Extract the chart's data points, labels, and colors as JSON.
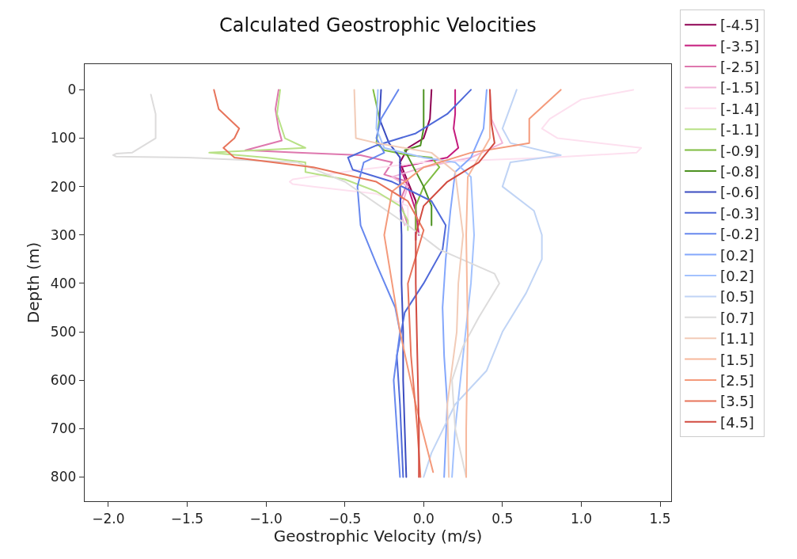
{
  "chart_data": {
    "type": "line",
    "title": "Calculated Geostrophic Velocities",
    "xlabel": "Geostrophic Velocity (m/s)",
    "ylabel": "Depth (m)",
    "xlim": [
      -2.15,
      1.57
    ],
    "ylim": [
      850,
      -53
    ],
    "xticks": [
      {
        "value": -2,
        "label": "−2.0"
      },
      {
        "value": -1.5,
        "label": "−1.5"
      },
      {
        "value": -1,
        "label": "−1.0"
      },
      {
        "value": -0.5,
        "label": "−0.5"
      },
      {
        "value": 0,
        "label": "0.0"
      },
      {
        "value": 0.5,
        "label": "0.5"
      },
      {
        "value": 1,
        "label": "1.0"
      },
      {
        "value": 1.5,
        "label": "1.5"
      }
    ],
    "yticks": [
      0,
      100,
      200,
      300,
      400,
      500,
      600,
      700,
      800
    ],
    "grid": false,
    "legend": "right",
    "series": [
      {
        "name": "[-4.5]",
        "color": "#8e0152",
        "x": [
          0.05,
          0.04,
          0.0,
          -0.1,
          -0.15,
          -0.1,
          -0.05,
          -0.05,
          -0.05
        ],
        "values": [
          0,
          60,
          100,
          120,
          150,
          190,
          230,
          270,
          310
        ]
      },
      {
        "name": "[-3.5]",
        "color": "#c51b7d",
        "x": [
          0.2,
          0.2,
          0.19,
          0.22,
          0.15,
          0.0,
          -0.15,
          -0.1,
          -0.05,
          -0.03
        ],
        "values": [
          0,
          50,
          80,
          120,
          140,
          150,
          160,
          200,
          250,
          300
        ]
      },
      {
        "name": "[-2.5]",
        "color": "#de77ae",
        "x": [
          -0.92,
          -0.94,
          -0.92,
          -0.9,
          -1.13,
          -0.8,
          -0.4,
          -0.2,
          -0.25,
          -0.1,
          -0.15,
          -0.1
        ],
        "values": [
          0,
          40,
          80,
          105,
          125,
          130,
          135,
          150,
          175,
          190,
          230,
          280
        ]
      },
      {
        "name": "[-1.5]",
        "color": "#f1b6da",
        "x": [
          0.42,
          0.43,
          0.5,
          0.3,
          0.0,
          -0.2,
          -0.1,
          -0.15,
          -0.12
        ],
        "values": [
          0,
          60,
          110,
          140,
          160,
          180,
          200,
          250,
          280
        ]
      },
      {
        "name": "[-1.4]",
        "color": "#fde0ef",
        "x": [
          1.33,
          1.0,
          0.8,
          0.75,
          0.85,
          1.38,
          1.35,
          0.8,
          0.0,
          -0.4,
          -0.83,
          -0.85,
          -0.83,
          -0.7,
          -0.3,
          -0.1,
          -0.1
        ],
        "values": [
          0,
          20,
          60,
          80,
          100,
          120,
          130,
          140,
          150,
          165,
          185,
          190,
          195,
          200,
          215,
          240,
          280
        ]
      },
      {
        "name": "[-1.1]",
        "color": "#b8e186",
        "x": [
          -0.91,
          -0.93,
          -0.88,
          -0.75,
          -1.36,
          -1.0,
          -0.75,
          -0.75,
          -0.5,
          -0.3,
          -0.15,
          -0.1,
          -0.1
        ],
        "values": [
          0,
          50,
          100,
          120,
          130,
          140,
          150,
          170,
          185,
          210,
          240,
          270,
          290
        ]
      },
      {
        "name": "[-0.9]",
        "color": "#7fbc41",
        "x": [
          -0.32,
          -0.28,
          -0.3,
          -0.25,
          -0.1,
          0.05,
          0.1,
          0.0,
          -0.05,
          -0.05
        ],
        "values": [
          0,
          60,
          110,
          125,
          135,
          140,
          160,
          200,
          240,
          290
        ]
      },
      {
        "name": "[-0.8]",
        "color": "#4d9221",
        "x": [
          0.0,
          0.0,
          -0.02,
          -0.12,
          -0.08,
          0.0,
          0.05,
          0.05
        ],
        "values": [
          0,
          80,
          115,
          125,
          150,
          200,
          240,
          280
        ]
      },
      {
        "name": "[-0.6]",
        "color": "#3b4cc0",
        "x": [
          -0.27,
          -0.28,
          -0.22,
          -0.15,
          -0.15,
          -0.14,
          -0.14,
          -0.13,
          -0.13,
          -0.12,
          -0.11
        ],
        "values": [
          0,
          60,
          110,
          140,
          200,
          300,
          400,
          500,
          600,
          700,
          800
        ]
      },
      {
        "name": "[-0.3]",
        "color": "#4f69d9",
        "x": [
          0.3,
          0.15,
          -0.05,
          -0.3,
          -0.48,
          -0.45,
          -0.2,
          0.05,
          0.14,
          0.12,
          0.0,
          -0.12,
          -0.17,
          -0.15,
          -0.13
        ],
        "values": [
          0,
          50,
          90,
          115,
          140,
          165,
          190,
          230,
          280,
          330,
          400,
          460,
          550,
          650,
          800
        ]
      },
      {
        "name": "[-0.2]",
        "color": "#6788ee",
        "x": [
          -0.16,
          -0.27,
          -0.3,
          -0.25,
          -0.38,
          -0.42,
          -0.4,
          -0.3,
          -0.18,
          -0.15,
          -0.19,
          -0.17,
          -0.15
        ],
        "values": [
          0,
          60,
          100,
          130,
          150,
          200,
          280,
          360,
          450,
          500,
          600,
          700,
          800
        ]
      },
      {
        "name": "[0.2]",
        "color": "#84a7fc",
        "x": [
          0.4,
          0.38,
          0.3,
          0.2,
          0.17,
          0.14,
          0.12,
          0.13,
          0.15,
          0.13
        ],
        "values": [
          0,
          80,
          140,
          170,
          250,
          350,
          450,
          550,
          650,
          800
        ]
      },
      {
        "name": "[0.2]",
        "color": "#a3c2fe",
        "x": [
          -0.29,
          -0.3,
          -0.25,
          0.0,
          0.2,
          0.3,
          0.32,
          0.3,
          0.25,
          0.2,
          0.18
        ],
        "values": [
          0,
          80,
          120,
          140,
          150,
          180,
          300,
          400,
          550,
          700,
          800
        ]
      },
      {
        "name": "[0.5]",
        "color": "#c0d4f5",
        "x": [
          0.59,
          0.5,
          0.55,
          0.87,
          0.55,
          0.5,
          0.7,
          0.75,
          0.75,
          0.65,
          0.5,
          0.4,
          0.2,
          0.05,
          0.0
        ],
        "values": [
          0,
          80,
          110,
          135,
          150,
          200,
          250,
          300,
          350,
          420,
          500,
          580,
          650,
          750,
          800
        ]
      },
      {
        "name": "[0.7]",
        "color": "#dddcdc",
        "x": [
          -1.73,
          -1.7,
          -1.7,
          -1.85,
          -1.95,
          -1.97,
          -1.95,
          -1.5,
          -0.8,
          -0.5,
          -0.1,
          0.1,
          0.45,
          0.48,
          0.35,
          0.25,
          0.18,
          0.2,
          0.27
        ],
        "values": [
          10,
          50,
          100,
          130,
          132,
          135,
          138,
          140,
          150,
          190,
          280,
          330,
          380,
          400,
          470,
          530,
          600,
          700,
          800
        ]
      },
      {
        "name": "[1.1]",
        "color": "#f2cbb7",
        "x": [
          -0.44,
          -0.43,
          -0.3,
          0.05,
          0.2,
          0.25,
          0.22,
          0.21,
          0.15,
          0.16
        ],
        "values": [
          0,
          100,
          110,
          130,
          170,
          300,
          400,
          500,
          650,
          800
        ]
      },
      {
        "name": "[1.5]",
        "color": "#f7b89c",
        "x": [
          0.42,
          0.42,
          0.35,
          0.28,
          0.27,
          0.28,
          0.27,
          0.27
        ],
        "values": [
          0,
          100,
          140,
          180,
          300,
          500,
          700,
          800
        ]
      },
      {
        "name": "[2.5]",
        "color": "#f49a7b",
        "x": [
          0.87,
          0.67,
          0.67,
          0.3,
          0.0,
          -0.2,
          -0.25,
          -0.2,
          -0.15,
          -0.05,
          0.06
        ],
        "values": [
          0,
          60,
          110,
          130,
          160,
          210,
          300,
          400,
          500,
          650,
          790
        ]
      },
      {
        "name": "[3.5]",
        "color": "#e7745b",
        "x": [
          -1.33,
          -1.3,
          -1.17,
          -1.2,
          -1.27,
          -1.2,
          -0.7,
          -0.3,
          -0.1,
          0.0,
          -0.1,
          -0.08,
          -0.04,
          -0.02
        ],
        "values": [
          0,
          40,
          80,
          100,
          120,
          140,
          160,
          190,
          230,
          290,
          400,
          550,
          700,
          800
        ]
      },
      {
        "name": "[4.5]",
        "color": "#d24b40",
        "x": [
          0.42,
          0.43,
          0.45,
          0.35,
          0.15,
          0.0,
          -0.05,
          -0.05,
          -0.04,
          -0.03,
          -0.03
        ],
        "values": [
          0,
          70,
          110,
          150,
          190,
          240,
          300,
          400,
          550,
          700,
          800
        ]
      }
    ]
  }
}
